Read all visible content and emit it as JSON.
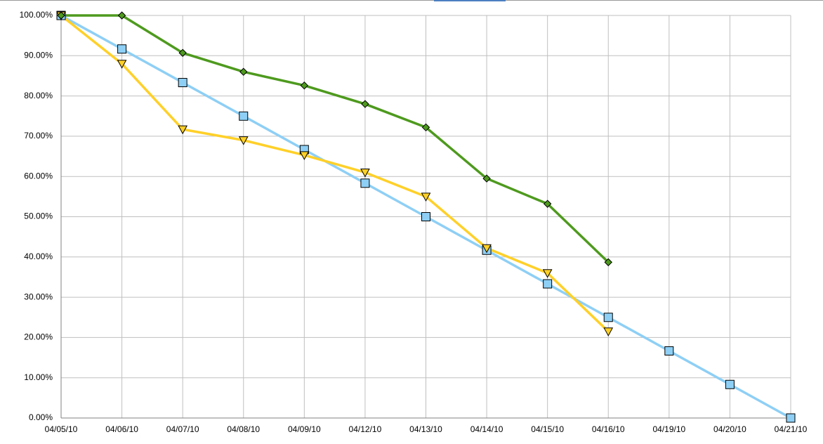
{
  "chart_data": {
    "type": "line",
    "categories": [
      "04/05/10",
      "04/06/10",
      "04/07/10",
      "04/08/10",
      "04/09/10",
      "04/12/10",
      "04/13/10",
      "04/14/10",
      "04/15/10",
      "04/16/10",
      "04/19/10",
      "04/20/10",
      "04/21/10"
    ],
    "series": [
      {
        "color": "#8ecff5",
        "marker": "square",
        "values": [
          100,
          91.67,
          83.33,
          75,
          66.67,
          58.33,
          50,
          41.67,
          33.33,
          25,
          16.67,
          8.33,
          0
        ]
      },
      {
        "color": "#ffd028",
        "marker": "triangle-down",
        "values": [
          100,
          88,
          71.7,
          69,
          65.3,
          61,
          55,
          42.2,
          36,
          21.5,
          null,
          null,
          null
        ]
      },
      {
        "color": "#4e9a1e",
        "marker": "diamond",
        "values": [
          100,
          100,
          90.7,
          86,
          82.6,
          78,
          72.2,
          59.5,
          53.2,
          38.7,
          null,
          null,
          null
        ]
      }
    ],
    "ylim": [
      0,
      100
    ],
    "yticks": [
      {
        "value": 0,
        "label": "0.00%"
      },
      {
        "value": 10,
        "label": "10.00%"
      },
      {
        "value": 20,
        "label": "20.00%"
      },
      {
        "value": 30,
        "label": "30.00%"
      },
      {
        "value": 40,
        "label": "40.00%"
      },
      {
        "value": 50,
        "label": "50.00%"
      },
      {
        "value": 60,
        "label": "60.00%"
      },
      {
        "value": 70,
        "label": "70.00%"
      },
      {
        "value": 80,
        "label": "80.00%"
      },
      {
        "value": 90,
        "label": "90.00%"
      },
      {
        "value": 100,
        "label": "100.00%"
      }
    ],
    "grid": true
  }
}
